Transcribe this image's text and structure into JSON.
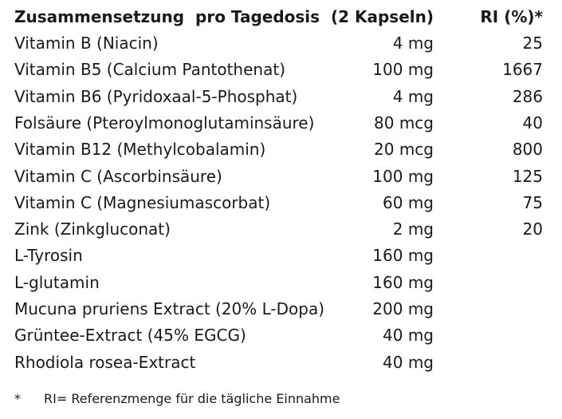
{
  "table": {
    "header": [
      "Zusammensetzung  pro Tagedosis",
      "(2 Kapseln)",
      "RI (%)*"
    ],
    "rows": [
      [
        "Vitamin B (Niacin)",
        "4 mg",
        "25"
      ],
      [
        "Vitamin B5 (Calcium Pantothenat)",
        "100 mg",
        "1667"
      ],
      [
        "Vitamin B6 (Pyridoxaal-5-Phosphat)",
        "4 mg",
        "286"
      ],
      [
        "Folsäure (Pteroylmonoglutaminsäure)",
        "80 mcg",
        "40"
      ],
      [
        "Vitamin B12 (Methylcobalamin)",
        "20 mcg",
        "800"
      ],
      [
        "Vitamin C (Ascorbinsäure)",
        "100 mg",
        "125"
      ],
      [
        "Vitamin C (Magnesiumascorbat)",
        "60 mg",
        "75"
      ],
      [
        "Zink (Zinkgluconat)",
        "2 mg",
        "20"
      ],
      [
        "L-Tyrosin",
        "160 mg"
      ],
      [
        "L-glutamin",
        "160 mg"
      ],
      [
        "Mucuna pruriens Extract (20% L-Dopa)",
        "200 mg"
      ],
      [
        "Grüntee-Extract (45% EGCG)",
        "40 mg"
      ],
      [
        "Rhodiola rosea-Extract",
        "40 mg"
      ]
    ]
  },
  "footnote": {
    "marker": "*",
    "text": "RI= Referenzmenge für die tägliche Einnahme"
  }
}
